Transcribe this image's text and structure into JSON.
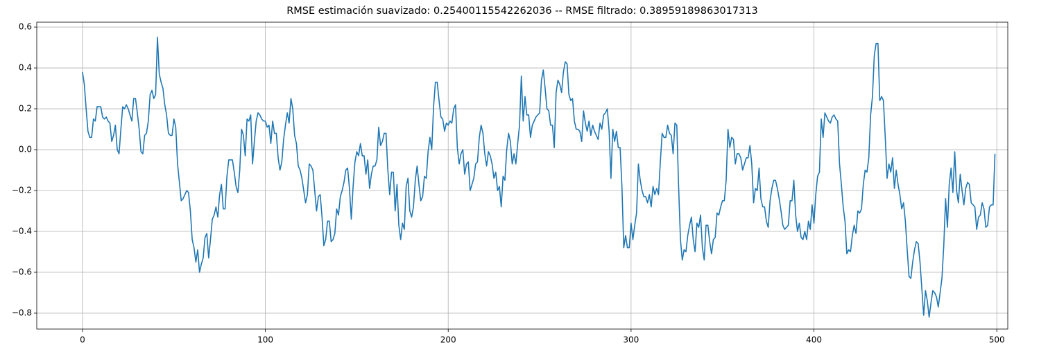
{
  "chart_data": {
    "type": "line",
    "title": "RMSE estimación suavizado: 0.25400115542262036 -- RMSE filtrado: 0.38959189863017313",
    "color": "#1f77b4",
    "grid": true,
    "xlim": [
      -25,
      506
    ],
    "ylim": [
      -0.878,
      0.624
    ],
    "xticks": [
      0,
      100,
      200,
      300,
      400,
      500
    ],
    "yticks": [
      {
        "value": -0.8,
        "label": "−0.8"
      },
      {
        "value": -0.6,
        "label": "−0.6"
      },
      {
        "value": -0.4,
        "label": "−0.4"
      },
      {
        "value": -0.2,
        "label": "−0.2"
      },
      {
        "value": 0,
        "label": "0.0"
      },
      0.2,
      0.4,
      0.6
    ],
    "x": [
      0,
      1,
      2,
      3,
      4,
      5,
      6,
      7,
      8,
      9,
      10,
      11,
      12,
      13,
      14,
      15,
      16,
      17,
      18,
      19,
      20,
      21,
      22,
      23,
      24,
      25,
      26,
      27,
      28,
      29,
      30,
      31,
      32,
      33,
      34,
      35,
      36,
      37,
      38,
      39,
      40,
      41,
      42,
      43,
      44,
      45,
      46,
      47,
      48,
      49,
      50,
      51,
      52,
      53,
      54,
      55,
      56,
      57,
      58,
      59,
      60,
      61,
      62,
      63,
      64,
      65,
      66,
      67,
      68,
      69,
      70,
      71,
      72,
      73,
      74,
      75,
      76,
      77,
      78,
      79,
      80,
      81,
      82,
      83,
      84,
      85,
      86,
      87,
      88,
      89,
      90,
      91,
      92,
      93,
      94,
      95,
      96,
      97,
      98,
      99,
      100,
      101,
      102,
      103,
      104,
      105,
      106,
      107,
      108,
      109,
      110,
      111,
      112,
      113,
      114,
      115,
      116,
      117,
      118,
      119,
      120,
      121,
      122,
      123,
      124,
      125,
      126,
      127,
      128,
      129,
      130,
      131,
      132,
      133,
      134,
      135,
      136,
      137,
      138,
      139,
      140,
      141,
      142,
      143,
      144,
      145,
      146,
      147,
      148,
      149,
      150,
      151,
      152,
      153,
      154,
      155,
      156,
      157,
      158,
      159,
      160,
      161,
      162,
      163,
      164,
      165,
      166,
      167,
      168,
      169,
      170,
      171,
      172,
      173,
      174,
      175,
      176,
      177,
      178,
      179,
      180,
      181,
      182,
      183,
      184,
      185,
      186,
      187,
      188,
      189,
      190,
      191,
      192,
      193,
      194,
      195,
      196,
      197,
      198,
      199,
      200,
      201,
      202,
      203,
      204,
      205,
      206,
      207,
      208,
      209,
      210,
      211,
      212,
      213,
      214,
      215,
      216,
      217,
      218,
      219,
      220,
      221,
      222,
      223,
      224,
      225,
      226,
      227,
      228,
      229,
      230,
      231,
      232,
      233,
      234,
      235,
      236,
      237,
      238,
      239,
      240,
      241,
      242,
      243,
      244,
      245,
      246,
      247,
      248,
      249,
      250,
      251,
      252,
      253,
      254,
      255,
      256,
      257,
      258,
      259,
      260,
      261,
      262,
      263,
      264,
      265,
      266,
      267,
      268,
      269,
      270,
      271,
      272,
      273,
      274,
      275,
      276,
      277,
      278,
      279,
      280,
      281,
      282,
      283,
      284,
      285,
      286,
      287,
      288,
      289,
      290,
      291,
      292,
      293,
      294,
      295,
      296,
      297,
      298,
      299,
      300,
      301,
      302,
      303,
      304,
      305,
      306,
      307,
      308,
      309,
      310,
      311,
      312,
      313,
      314,
      315,
      316,
      317,
      318,
      319,
      320,
      321,
      322,
      323,
      324,
      325,
      326,
      327,
      328,
      329,
      330,
      331,
      332,
      333,
      334,
      335,
      336,
      337,
      338,
      339,
      340,
      341,
      342,
      343,
      344,
      345,
      346,
      347,
      348,
      349,
      350,
      351,
      352,
      353,
      354,
      355,
      356,
      357,
      358,
      359,
      360,
      361,
      362,
      363,
      364,
      365,
      366,
      367,
      368,
      369,
      370,
      371,
      372,
      373,
      374,
      375,
      376,
      377,
      378,
      379,
      380,
      381,
      382,
      383,
      384,
      385,
      386,
      387,
      388,
      389,
      390,
      391,
      392,
      393,
      394,
      395,
      396,
      397,
      398,
      399,
      400,
      401,
      402,
      403,
      404,
      405,
      406,
      407,
      408,
      409,
      410,
      411,
      412,
      413,
      414,
      415,
      416,
      417,
      418,
      419,
      420,
      421,
      422,
      423,
      424,
      425,
      426,
      427,
      428,
      429,
      430,
      431,
      432,
      433,
      434,
      435,
      436,
      437,
      438,
      439,
      440,
      441,
      442,
      443,
      444,
      445,
      446,
      447,
      448,
      449,
      450,
      451,
      452,
      453,
      454,
      455,
      456,
      457,
      458,
      459,
      460,
      461,
      462,
      463,
      464,
      465,
      466,
      467,
      468,
      469,
      470,
      471,
      472,
      473,
      474,
      475,
      476,
      477,
      478,
      479,
      480,
      481,
      482,
      483,
      484,
      485,
      486,
      487,
      488,
      489,
      490,
      491,
      492,
      493,
      494,
      495,
      496,
      497,
      498,
      499
    ],
    "values": [
      0.38,
      0.32,
      0.2,
      0.09,
      0.06,
      0.06,
      0.15,
      0.14,
      0.21,
      0.21,
      0.21,
      0.16,
      0.15,
      0.16,
      0.14,
      0.13,
      0.04,
      0.07,
      0.12,
      0.0,
      -0.02,
      0.1,
      0.21,
      0.2,
      0.22,
      0.2,
      0.17,
      0.14,
      0.25,
      0.25,
      0.18,
      0.1,
      -0.01,
      -0.02,
      0.07,
      0.08,
      0.14,
      0.27,
      0.29,
      0.25,
      0.27,
      0.55,
      0.37,
      0.33,
      0.3,
      0.22,
      0.17,
      0.08,
      0.07,
      0.07,
      0.15,
      0.11,
      -0.07,
      -0.16,
      -0.25,
      -0.24,
      -0.22,
      -0.2,
      -0.21,
      -0.3,
      -0.44,
      -0.48,
      -0.55,
      -0.49,
      -0.6,
      -0.56,
      -0.53,
      -0.43,
      -0.41,
      -0.53,
      -0.44,
      -0.34,
      -0.32,
      -0.28,
      -0.33,
      -0.22,
      -0.17,
      -0.29,
      -0.29,
      -0.13,
      -0.05,
      -0.05,
      -0.05,
      -0.11,
      -0.18,
      -0.21,
      -0.1,
      0.1,
      0.07,
      -0.03,
      0.15,
      0.14,
      0.17,
      -0.07,
      0.04,
      0.14,
      0.18,
      0.17,
      0.15,
      0.14,
      0.14,
      0.11,
      0.12,
      0.03,
      0.14,
      0.08,
      0.08,
      -0.04,
      -0.1,
      -0.06,
      0.05,
      0.12,
      0.18,
      0.13,
      0.25,
      0.2,
      0.07,
      0.03,
      -0.08,
      -0.1,
      -0.14,
      -0.2,
      -0.26,
      -0.22,
      -0.07,
      -0.08,
      -0.1,
      -0.2,
      -0.3,
      -0.23,
      -0.22,
      -0.33,
      -0.47,
      -0.44,
      -0.35,
      -0.35,
      -0.45,
      -0.44,
      -0.41,
      -0.29,
      -0.32,
      -0.23,
      -0.2,
      -0.16,
      -0.1,
      -0.09,
      -0.19,
      -0.34,
      -0.18,
      -0.06,
      -0.01,
      -0.03,
      0.03,
      -0.03,
      -0.03,
      -0.12,
      -0.05,
      -0.19,
      -0.12,
      -0.08,
      -0.08,
      -0.05,
      0.11,
      0.02,
      0.04,
      0.08,
      0.08,
      -0.1,
      -0.22,
      -0.11,
      -0.11,
      -0.3,
      -0.17,
      -0.37,
      -0.44,
      -0.36,
      -0.39,
      -0.18,
      -0.14,
      -0.3,
      -0.33,
      -0.28,
      -0.15,
      -0.08,
      -0.17,
      -0.25,
      -0.23,
      -0.13,
      -0.14,
      -0.01,
      0.06,
      0.0,
      0.21,
      0.33,
      0.33,
      0.24,
      0.16,
      0.15,
      0.09,
      0.13,
      0.12,
      0.14,
      0.13,
      0.2,
      0.22,
      0.01,
      -0.07,
      -0.02,
      0.0,
      -0.12,
      -0.07,
      -0.06,
      -0.2,
      -0.17,
      -0.14,
      -0.07,
      -0.06,
      0.06,
      0.12,
      0.08,
      -0.02,
      -0.08,
      -0.01,
      -0.03,
      -0.07,
      -0.14,
      -0.11,
      -0.2,
      -0.18,
      -0.28,
      -0.13,
      -0.15,
      0.0,
      0.08,
      0.04,
      -0.07,
      -0.02,
      -0.07,
      0.03,
      0.12,
      0.36,
      0.14,
      0.26,
      0.17,
      0.17,
      0.06,
      0.12,
      0.14,
      0.16,
      0.17,
      0.18,
      0.34,
      0.39,
      0.3,
      0.2,
      0.19,
      0.12,
      0.12,
      0.01,
      0.28,
      0.34,
      0.32,
      0.28,
      0.38,
      0.43,
      0.42,
      0.27,
      0.24,
      0.25,
      0.14,
      0.1,
      0.1,
      0.09,
      0.04,
      0.19,
      0.13,
      0.09,
      0.14,
      0.07,
      0.12,
      0.09,
      0.07,
      0.05,
      0.13,
      0.1,
      0.17,
      0.18,
      0.2,
      0.09,
      -0.14,
      0.1,
      0.04,
      0.09,
      0.01,
      0.01,
      -0.18,
      -0.48,
      -0.42,
      -0.48,
      -0.48,
      -0.36,
      -0.44,
      -0.37,
      -0.31,
      -0.07,
      -0.15,
      -0.2,
      -0.23,
      -0.23,
      -0.26,
      -0.22,
      -0.28,
      -0.18,
      -0.22,
      -0.19,
      -0.22,
      -0.06,
      0.08,
      0.06,
      0.06,
      0.12,
      0.08,
      0.07,
      -0.02,
      0.13,
      0.12,
      -0.18,
      -0.44,
      -0.54,
      -0.49,
      -0.5,
      -0.42,
      -0.37,
      -0.33,
      -0.44,
      -0.5,
      -0.36,
      -0.38,
      -0.32,
      -0.48,
      -0.54,
      -0.37,
      -0.37,
      -0.45,
      -0.51,
      -0.44,
      -0.43,
      -0.31,
      -0.32,
      -0.28,
      -0.25,
      -0.25,
      -0.15,
      0.1,
      0.01,
      0.06,
      0.05,
      -0.07,
      -0.02,
      -0.02,
      -0.04,
      -0.1,
      -0.07,
      -0.04,
      -0.04,
      0.02,
      -0.07,
      -0.26,
      -0.19,
      -0.2,
      -0.09,
      -0.24,
      -0.28,
      -0.28,
      -0.35,
      -0.38,
      -0.25,
      -0.19,
      -0.15,
      -0.15,
      -0.19,
      -0.24,
      -0.3,
      -0.37,
      -0.39,
      -0.38,
      -0.37,
      -0.25,
      -0.25,
      -0.15,
      -0.32,
      -0.4,
      -0.36,
      -0.43,
      -0.44,
      -0.4,
      -0.44,
      -0.35,
      -0.39,
      -0.27,
      -0.36,
      -0.22,
      -0.13,
      -0.11,
      0.15,
      0.06,
      0.18,
      0.16,
      0.14,
      0.13,
      0.16,
      0.17,
      0.15,
      0.14,
      -0.07,
      -0.17,
      -0.28,
      -0.35,
      -0.51,
      -0.49,
      -0.5,
      -0.42,
      -0.37,
      -0.41,
      -0.3,
      -0.31,
      -0.29,
      -0.17,
      -0.1,
      -0.11,
      -0.04,
      0.17,
      0.26,
      0.46,
      0.52,
      0.52,
      0.24,
      0.26,
      0.24,
      0.06,
      -0.14,
      -0.07,
      -0.11,
      -0.04,
      -0.19,
      -0.1,
      -0.17,
      -0.22,
      -0.29,
      -0.26,
      -0.35,
      -0.49,
      -0.62,
      -0.63,
      -0.55,
      -0.49,
      -0.45,
      -0.46,
      -0.55,
      -0.68,
      -0.81,
      -0.69,
      -0.74,
      -0.82,
      -0.75,
      -0.69,
      -0.7,
      -0.72,
      -0.77,
      -0.7,
      -0.63,
      -0.47,
      -0.24,
      -0.38,
      -0.17,
      -0.09,
      -0.21,
      -0.01,
      -0.2,
      -0.26,
      -0.12,
      -0.2,
      -0.27,
      -0.19,
      -0.16,
      -0.17,
      -0.26,
      -0.27,
      -0.28,
      -0.39,
      -0.33,
      -0.32,
      -0.26,
      -0.29,
      -0.38,
      -0.37,
      -0.28,
      -0.27,
      -0.27,
      -0.02
    ]
  }
}
